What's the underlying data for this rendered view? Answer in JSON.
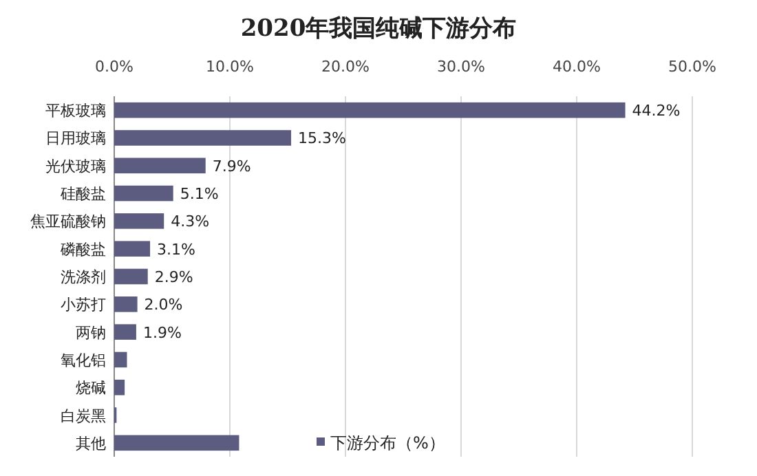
{
  "chart_data": {
    "type": "bar",
    "orientation": "horizontal",
    "title": "2020年我国纯碱下游分布",
    "categories": [
      "平板玻璃",
      "日用玻璃",
      "光伏玻璃",
      "硅酸盐",
      "焦亚硫酸钠",
      "磷酸盐",
      "洗涤剂",
      "小苏打",
      "两钠",
      "氧化铝",
      "烧碱",
      "白炭黑",
      "其他"
    ],
    "series": [
      {
        "name": "下游分布（%）",
        "color": "#5c5c80",
        "values": [
          44.2,
          15.3,
          7.9,
          5.1,
          4.3,
          3.1,
          2.9,
          2.0,
          1.9,
          1.1,
          0.9,
          0.2,
          10.8
        ],
        "value_labels": [
          "44.2%",
          "15.3%",
          "7.9%",
          "5.1%",
          "4.3%",
          "3.1%",
          "2.9%",
          "2.0%",
          "1.9%",
          null,
          null,
          null,
          null
        ]
      }
    ],
    "xlim": [
      0,
      50
    ],
    "xticks": [
      {
        "value": 0,
        "label": "0.0%"
      },
      {
        "value": 10,
        "label": "10.0%"
      },
      {
        "value": 20,
        "label": "20.0%"
      },
      {
        "value": 30,
        "label": "30.0%"
      },
      {
        "value": 40,
        "label": "40.0%"
      },
      {
        "value": 50,
        "label": "50.0%"
      }
    ],
    "grid": "x",
    "legend": "bottom right"
  }
}
